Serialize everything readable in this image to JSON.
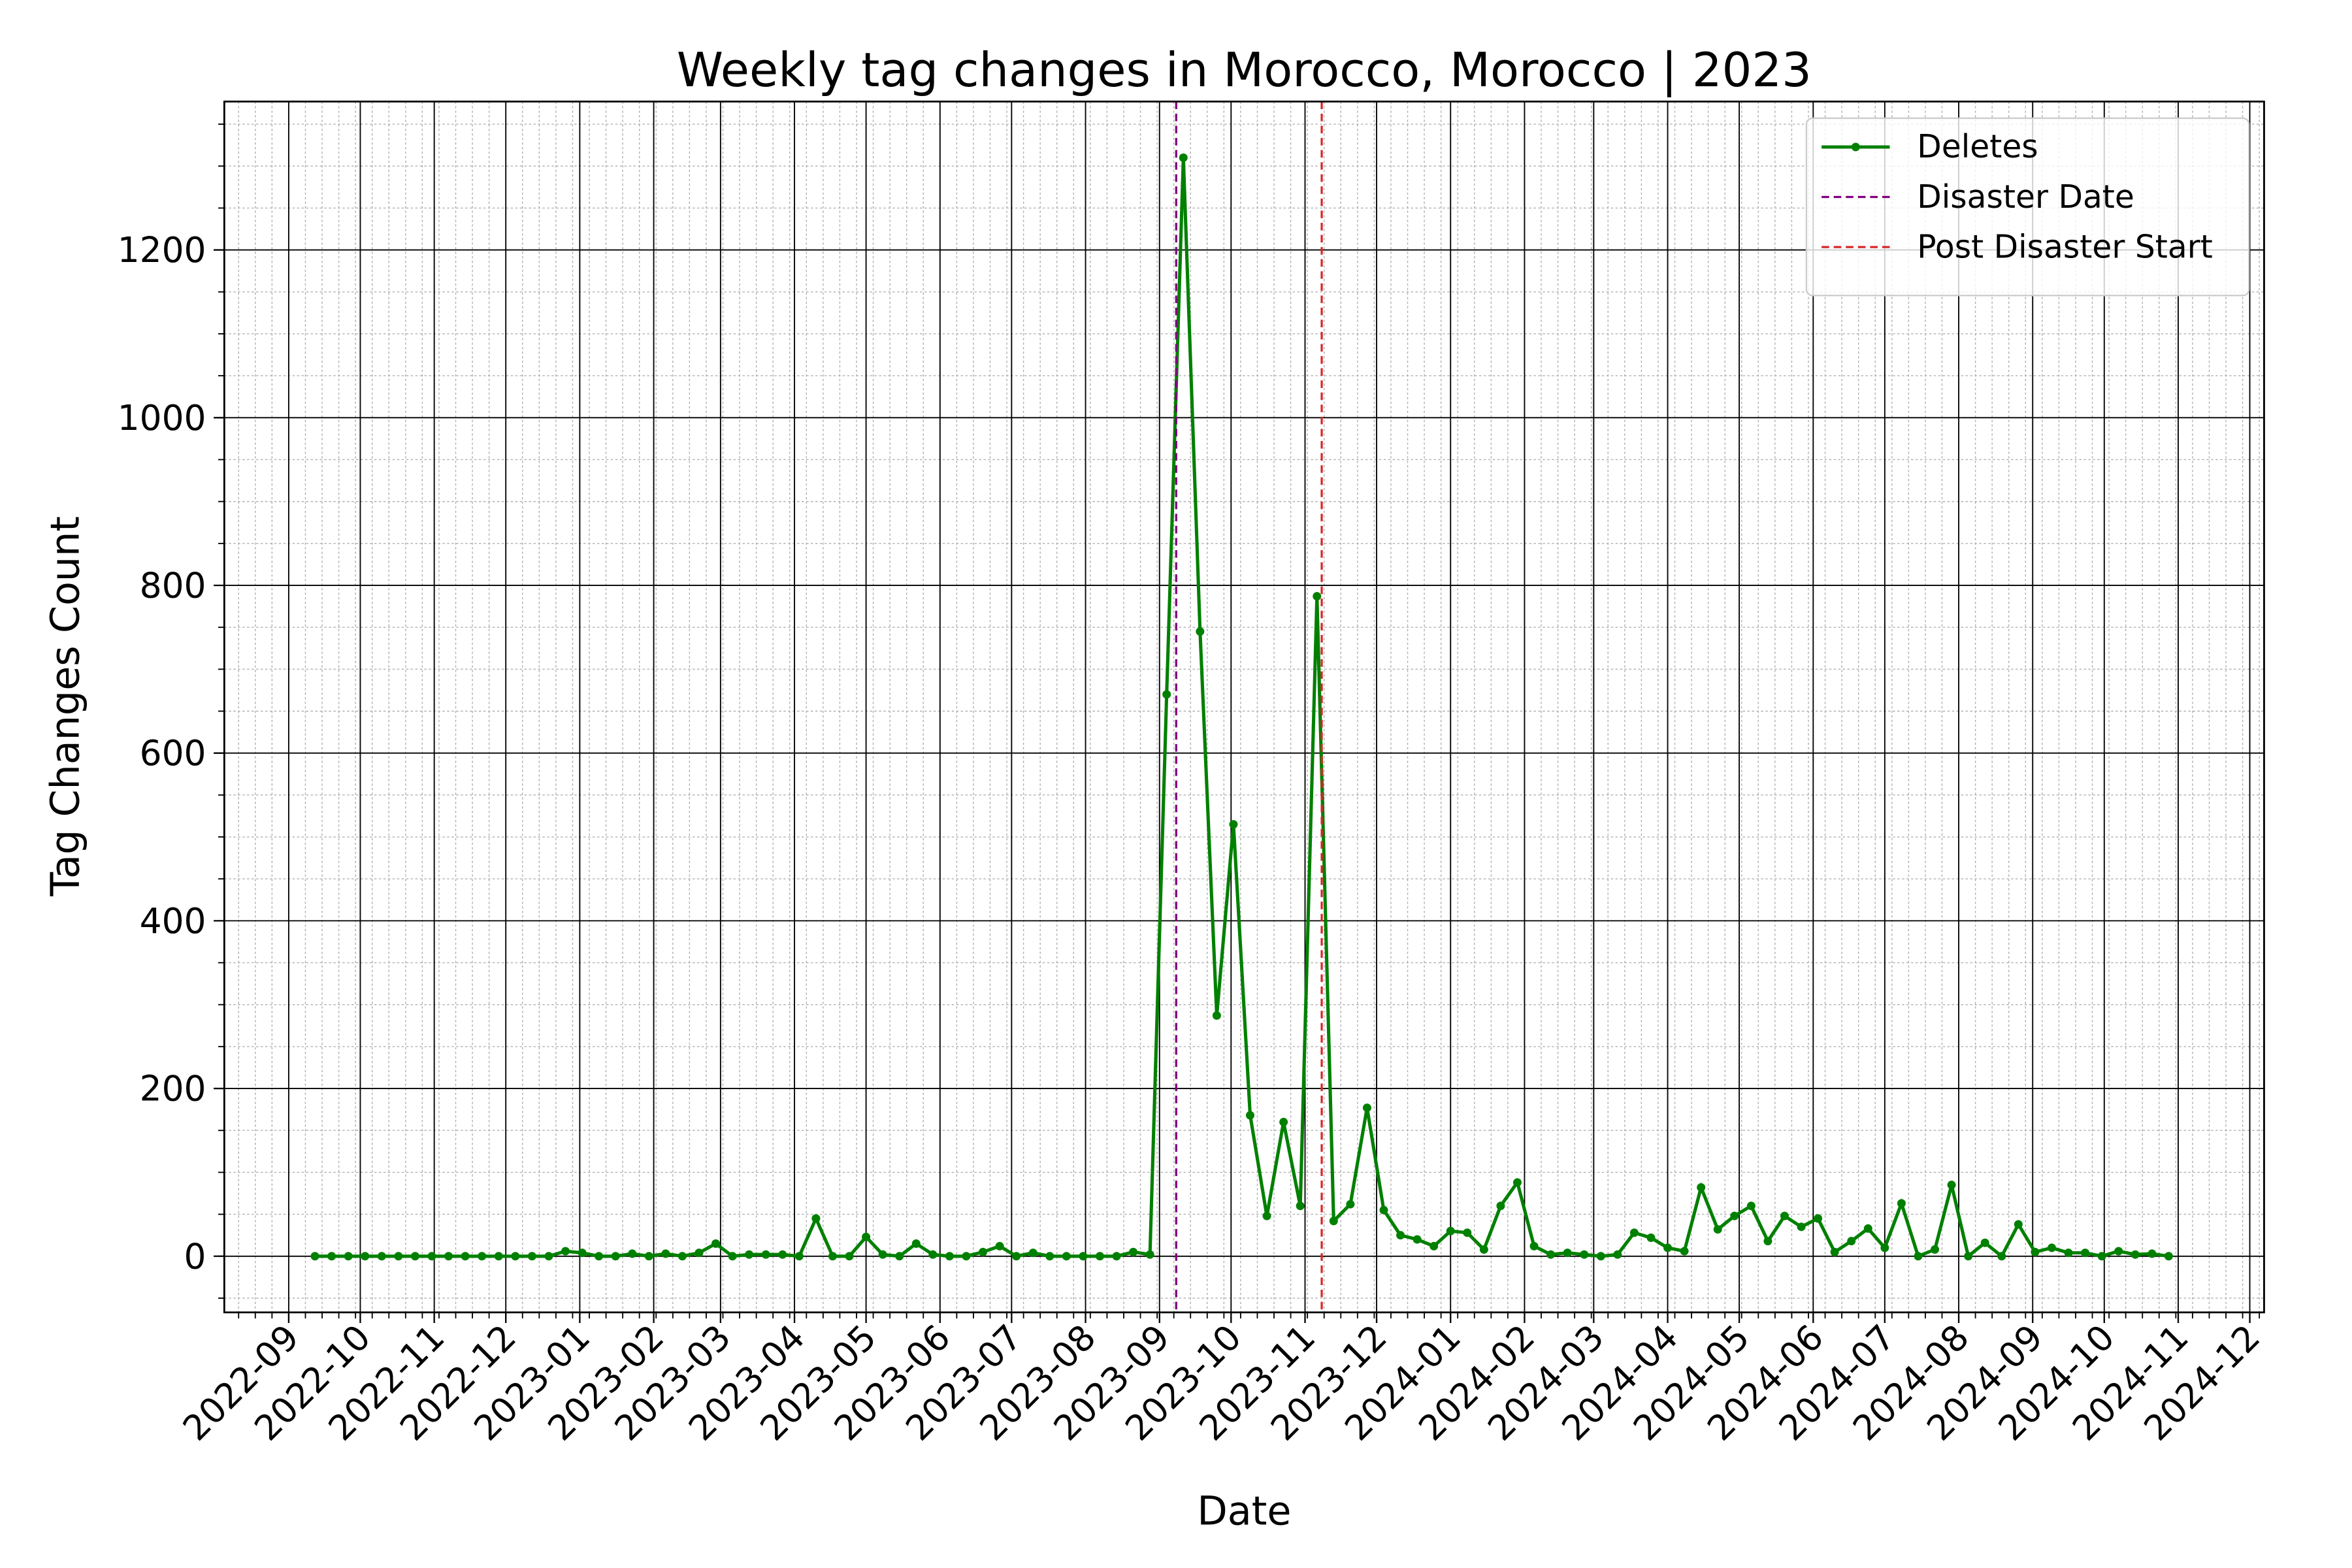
{
  "chart_data": {
    "type": "line",
    "title": "Weekly tag changes in Morocco, Morocco | 2023",
    "x_label": "Date",
    "y_label": "Tag Changes Count",
    "x": [
      "2022-09-12",
      "2022-09-19",
      "2022-09-26",
      "2022-10-03",
      "2022-10-10",
      "2022-10-17",
      "2022-10-24",
      "2022-10-31",
      "2022-11-07",
      "2022-11-14",
      "2022-11-21",
      "2022-11-28",
      "2022-12-05",
      "2022-12-12",
      "2022-12-19",
      "2022-12-26",
      "2023-01-02",
      "2023-01-09",
      "2023-01-16",
      "2023-01-23",
      "2023-01-30",
      "2023-02-06",
      "2023-02-13",
      "2023-02-20",
      "2023-02-27",
      "2023-03-06",
      "2023-03-13",
      "2023-03-20",
      "2023-03-27",
      "2023-04-03",
      "2023-04-10",
      "2023-04-17",
      "2023-04-24",
      "2023-05-01",
      "2023-05-08",
      "2023-05-15",
      "2023-05-22",
      "2023-05-29",
      "2023-06-05",
      "2023-06-12",
      "2023-06-19",
      "2023-06-26",
      "2023-07-03",
      "2023-07-10",
      "2023-07-17",
      "2023-07-24",
      "2023-07-31",
      "2023-08-07",
      "2023-08-14",
      "2023-08-21",
      "2023-08-28",
      "2023-09-04",
      "2023-09-11",
      "2023-09-18",
      "2023-09-25",
      "2023-10-02",
      "2023-10-09",
      "2023-10-16",
      "2023-10-23",
      "2023-10-30",
      "2023-11-06",
      "2023-11-13",
      "2023-11-20",
      "2023-11-27",
      "2023-12-04",
      "2023-12-11",
      "2023-12-18",
      "2023-12-25",
      "2024-01-01",
      "2024-01-08",
      "2024-01-15",
      "2024-01-22",
      "2024-01-29",
      "2024-02-05",
      "2024-02-12",
      "2024-02-19",
      "2024-02-26",
      "2024-03-04",
      "2024-03-11",
      "2024-03-18",
      "2024-03-25",
      "2024-04-01",
      "2024-04-08",
      "2024-04-15",
      "2024-04-22",
      "2024-04-29",
      "2024-05-06",
      "2024-05-13",
      "2024-05-20",
      "2024-05-27",
      "2024-06-03",
      "2024-06-10",
      "2024-06-17",
      "2024-06-24",
      "2024-07-01",
      "2024-07-08",
      "2024-07-15",
      "2024-07-22",
      "2024-07-29",
      "2024-08-05",
      "2024-08-12",
      "2024-08-19",
      "2024-08-26",
      "2024-09-02",
      "2024-09-09",
      "2024-09-16",
      "2024-09-23",
      "2024-09-30",
      "2024-10-07",
      "2024-10-14",
      "2024-10-21",
      "2024-10-28"
    ],
    "series": [
      {
        "name": "Deletes",
        "color": "#008000",
        "values": [
          0,
          0,
          0,
          0,
          0,
          0,
          0,
          0,
          0,
          0,
          0,
          0,
          0,
          0,
          0,
          6,
          4,
          0,
          0,
          3,
          0,
          3,
          0,
          4,
          15,
          0,
          2,
          2,
          2,
          0,
          45,
          0,
          0,
          23,
          2,
          0,
          15,
          2,
          0,
          0,
          5,
          12,
          0,
          4,
          0,
          0,
          0,
          0,
          0,
          5,
          2,
          670,
          1310,
          745,
          287,
          515,
          168,
          48,
          160,
          60,
          787,
          42,
          62,
          177,
          55,
          25,
          20,
          12,
          30,
          28,
          8,
          60,
          88,
          12,
          2,
          4,
          2,
          0,
          2,
          28,
          22,
          10,
          6,
          82,
          32,
          48,
          60,
          18,
          48,
          35,
          45,
          5,
          18,
          33,
          10,
          63,
          0,
          8,
          85,
          0,
          16,
          0,
          38,
          5,
          10,
          4,
          4,
          0,
          6,
          2,
          3,
          0
        ]
      }
    ],
    "vlines": [
      {
        "name": "Disaster Date",
        "x": "2023-09-08",
        "color": "#800080"
      },
      {
        "name": "Post Disaster Start",
        "x": "2023-11-08",
        "color": "#d62728"
      }
    ],
    "xlim": [
      "2022-08-05",
      "2024-12-07"
    ],
    "xticks": [
      "2022-09",
      "2022-10",
      "2022-11",
      "2022-12",
      "2023-01",
      "2023-02",
      "2023-03",
      "2023-04",
      "2023-05",
      "2023-06",
      "2023-07",
      "2023-08",
      "2023-09",
      "2023-10",
      "2023-11",
      "2023-12",
      "2024-01",
      "2024-02",
      "2024-03",
      "2024-04",
      "2024-05",
      "2024-06",
      "2024-07",
      "2024-08",
      "2024-09",
      "2024-10",
      "2024-11",
      "2024-12"
    ],
    "ylim": [
      -67,
      1377
    ],
    "yticks": [
      0,
      200,
      400,
      600,
      800,
      1000,
      1200
    ],
    "grid": true,
    "legend": "upper right"
  }
}
